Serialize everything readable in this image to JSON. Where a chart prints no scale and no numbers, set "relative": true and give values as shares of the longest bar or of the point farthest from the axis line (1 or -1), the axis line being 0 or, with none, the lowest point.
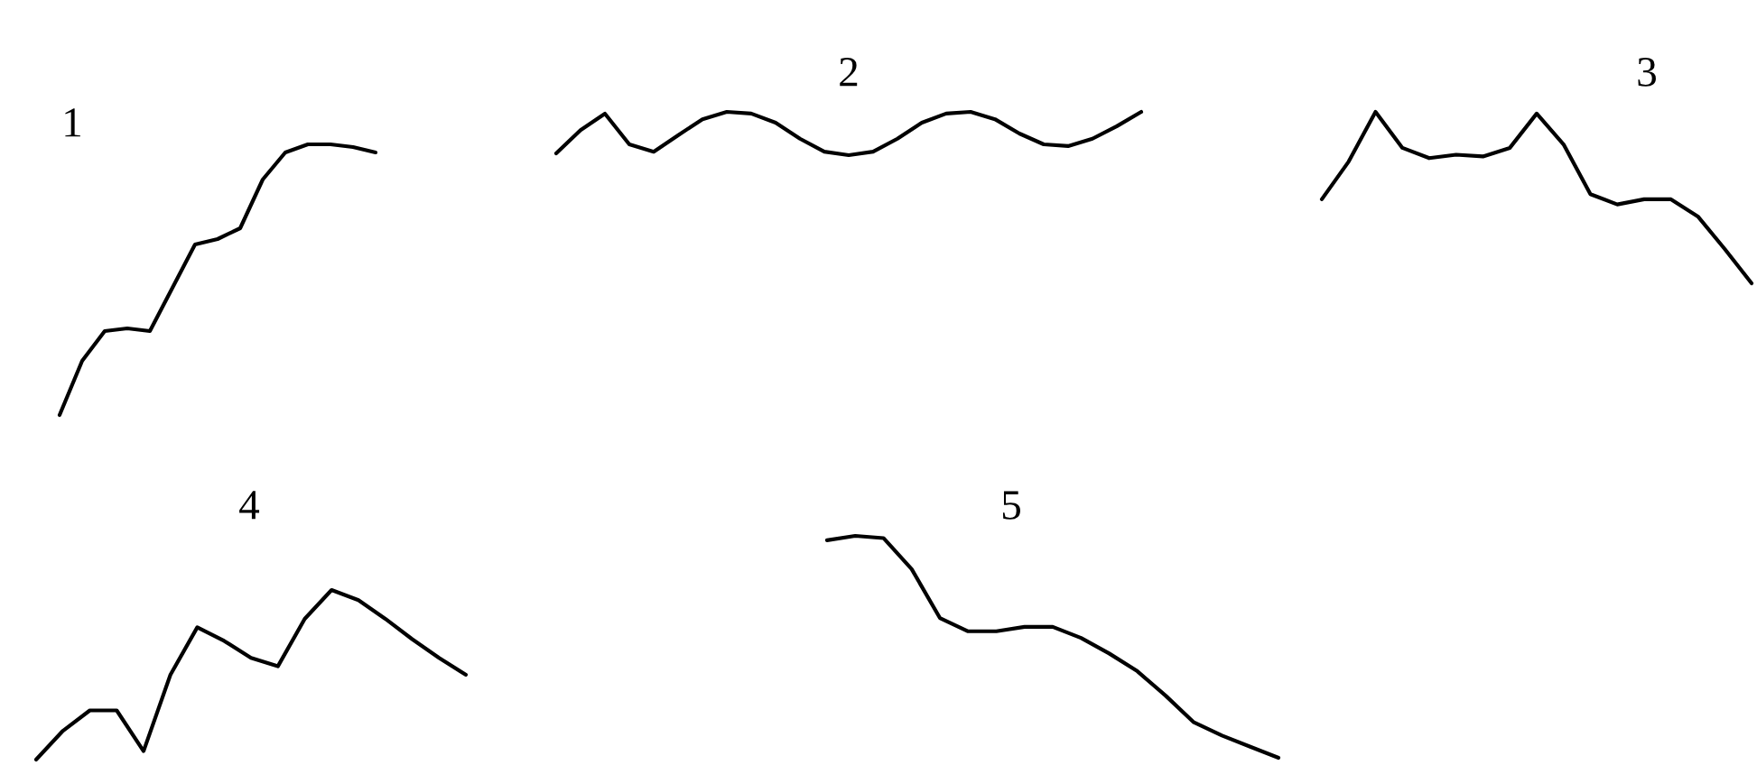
{
  "chart_data": [
    {
      "type": "line",
      "title": "1",
      "relative": true,
      "categories": [
        null,
        null,
        null,
        null,
        null,
        null,
        null,
        null,
        null,
        null,
        null,
        null,
        null,
        null,
        null
      ],
      "series": [
        {
          "color": "#000000",
          "values": [
            0,
            0.2,
            0.31,
            0.32,
            0.31,
            0.47,
            0.63,
            0.65,
            0.69,
            0.87,
            0.97,
            1.0,
            1.0,
            0.99,
            0.97
          ]
        }
      ]
    },
    {
      "type": "line",
      "title": "2",
      "relative": true,
      "categories": [
        null,
        null,
        null,
        null,
        null,
        null,
        null,
        null,
        null,
        null,
        null,
        null,
        null,
        null,
        null,
        null,
        null,
        null,
        null,
        null,
        null,
        null,
        null,
        null,
        null
      ],
      "series": [
        {
          "color": "#000000",
          "values": [
            0.04,
            0.58,
            0.96,
            0.25,
            0.08,
            0.46,
            0.83,
            1.0,
            0.96,
            0.75,
            0.38,
            0.08,
            0,
            0.08,
            0.38,
            0.75,
            0.96,
            1.0,
            0.83,
            0.5,
            0.25,
            0.21,
            0.38,
            0.67,
            1.0
          ]
        }
      ]
    },
    {
      "type": "line",
      "title": "3",
      "relative": true,
      "categories": [
        null,
        null,
        null,
        null,
        null,
        null,
        null,
        null,
        null,
        null,
        null,
        null,
        null,
        null,
        null,
        null,
        null
      ],
      "series": [
        {
          "color": "#000000",
          "values": [
            0.49,
            0.71,
            1.0,
            0.79,
            0.73,
            0.75,
            0.74,
            0.79,
            0.99,
            0.81,
            0.52,
            0.46,
            0.49,
            0.49,
            0.39,
            0.2,
            0
          ]
        }
      ]
    },
    {
      "type": "line",
      "title": "4",
      "relative": true,
      "categories": [
        null,
        null,
        null,
        null,
        null,
        null,
        null,
        null,
        null,
        null,
        null,
        null,
        null,
        null,
        null,
        null,
        null
      ],
      "series": [
        {
          "color": "#000000",
          "values": [
            0,
            0.17,
            0.29,
            0.29,
            0.05,
            0.5,
            0.78,
            0.7,
            0.6,
            0.55,
            0.83,
            1.0,
            0.94,
            0.83,
            0.71,
            0.6,
            0.5
          ]
        }
      ]
    },
    {
      "type": "line",
      "title": "5",
      "relative": true,
      "categories": [
        null,
        null,
        null,
        null,
        null,
        null,
        null,
        null,
        null,
        null,
        null,
        null,
        null,
        null,
        null,
        null,
        null
      ],
      "series": [
        {
          "color": "#000000",
          "values": [
            0.98,
            1.0,
            0.99,
            0.85,
            0.63,
            0.57,
            0.57,
            0.59,
            0.59,
            0.54,
            0.47,
            0.39,
            0.28,
            0.16,
            0.1,
            0.05,
            0
          ]
        }
      ]
    }
  ]
}
